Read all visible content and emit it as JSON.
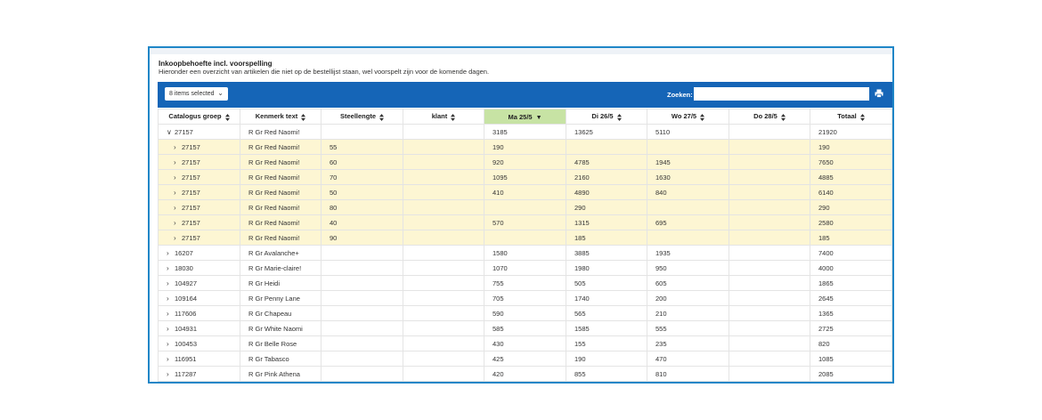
{
  "header": {
    "title": "Inkoopbehoefte incl. voorspelling",
    "subtitle": "Hieronder een overzicht van artikelen die niet op de bestellijst staan, wel voorspelt zijn voor de komende dagen."
  },
  "toolbar": {
    "select_label": "8 items selected",
    "search_label": "Zoeken:",
    "search_value": "",
    "print_icon": "print-icon"
  },
  "colors": {
    "toolbar": "#1565b7",
    "active_column": "#c7e3a4",
    "child_row": "#fdf6d3",
    "frame": "#1f86c7"
  },
  "table": {
    "columns": [
      "Catalogus groep",
      "Kenmerk text",
      "Steellengte",
      "klant",
      "Ma 25/5",
      "Di 26/5",
      "Wo 27/5",
      "Do 28/5",
      "Totaal"
    ],
    "active_column": "Ma 25/5",
    "rows": [
      {
        "level": 0,
        "expanded": true,
        "cells": [
          "27157",
          "R Gr Red Naomi!",
          "",
          "",
          "3185",
          "13625",
          "5110",
          "",
          "21920"
        ]
      },
      {
        "level": 1,
        "expanded": false,
        "cells": [
          "27157",
          "R Gr Red Naomi!",
          "55",
          "",
          "190",
          "",
          "",
          "",
          "190"
        ]
      },
      {
        "level": 1,
        "expanded": false,
        "cells": [
          "27157",
          "R Gr Red Naomi!",
          "60",
          "",
          "920",
          "4785",
          "1945",
          "",
          "7650"
        ]
      },
      {
        "level": 1,
        "expanded": false,
        "cells": [
          "27157",
          "R Gr Red Naomi!",
          "70",
          "",
          "1095",
          "2160",
          "1630",
          "",
          "4885"
        ]
      },
      {
        "level": 1,
        "expanded": false,
        "cells": [
          "27157",
          "R Gr Red Naomi!",
          "50",
          "",
          "410",
          "4890",
          "840",
          "",
          "6140"
        ]
      },
      {
        "level": 1,
        "expanded": false,
        "cells": [
          "27157",
          "R Gr Red Naomi!",
          "80",
          "",
          "",
          "290",
          "",
          "",
          "290"
        ]
      },
      {
        "level": 1,
        "expanded": false,
        "cells": [
          "27157",
          "R Gr Red Naomi!",
          "40",
          "",
          "570",
          "1315",
          "695",
          "",
          "2580"
        ]
      },
      {
        "level": 1,
        "expanded": false,
        "cells": [
          "27157",
          "R Gr Red Naomi!",
          "90",
          "",
          "",
          "185",
          "",
          "",
          "185"
        ]
      },
      {
        "level": 0,
        "expanded": false,
        "cells": [
          "16207",
          "R Gr Avalanche+",
          "",
          "",
          "1580",
          "3885",
          "1935",
          "",
          "7400"
        ]
      },
      {
        "level": 0,
        "expanded": false,
        "cells": [
          "18030",
          "R Gr Marie-claire!",
          "",
          "",
          "1070",
          "1980",
          "950",
          "",
          "4000"
        ]
      },
      {
        "level": 0,
        "expanded": false,
        "cells": [
          "104927",
          "R Gr Heidi",
          "",
          "",
          "755",
          "505",
          "605",
          "",
          "1865"
        ]
      },
      {
        "level": 0,
        "expanded": false,
        "cells": [
          "109164",
          "R Gr Penny Lane",
          "",
          "",
          "705",
          "1740",
          "200",
          "",
          "2645"
        ]
      },
      {
        "level": 0,
        "expanded": false,
        "cells": [
          "117606",
          "R Gr Chapeau",
          "",
          "",
          "590",
          "565",
          "210",
          "",
          "1365"
        ]
      },
      {
        "level": 0,
        "expanded": false,
        "cells": [
          "104931",
          "R Gr White Naomi",
          "",
          "",
          "585",
          "1585",
          "555",
          "",
          "2725"
        ]
      },
      {
        "level": 0,
        "expanded": false,
        "cells": [
          "100453",
          "R Gr Belle Rose",
          "",
          "",
          "430",
          "155",
          "235",
          "",
          "820"
        ]
      },
      {
        "level": 0,
        "expanded": false,
        "cells": [
          "116951",
          "R Gr Tabasco",
          "",
          "",
          "425",
          "190",
          "470",
          "",
          "1085"
        ]
      },
      {
        "level": 0,
        "expanded": false,
        "cells": [
          "117287",
          "R Gr Pink Athena",
          "",
          "",
          "420",
          "855",
          "810",
          "",
          "2085"
        ]
      }
    ]
  }
}
